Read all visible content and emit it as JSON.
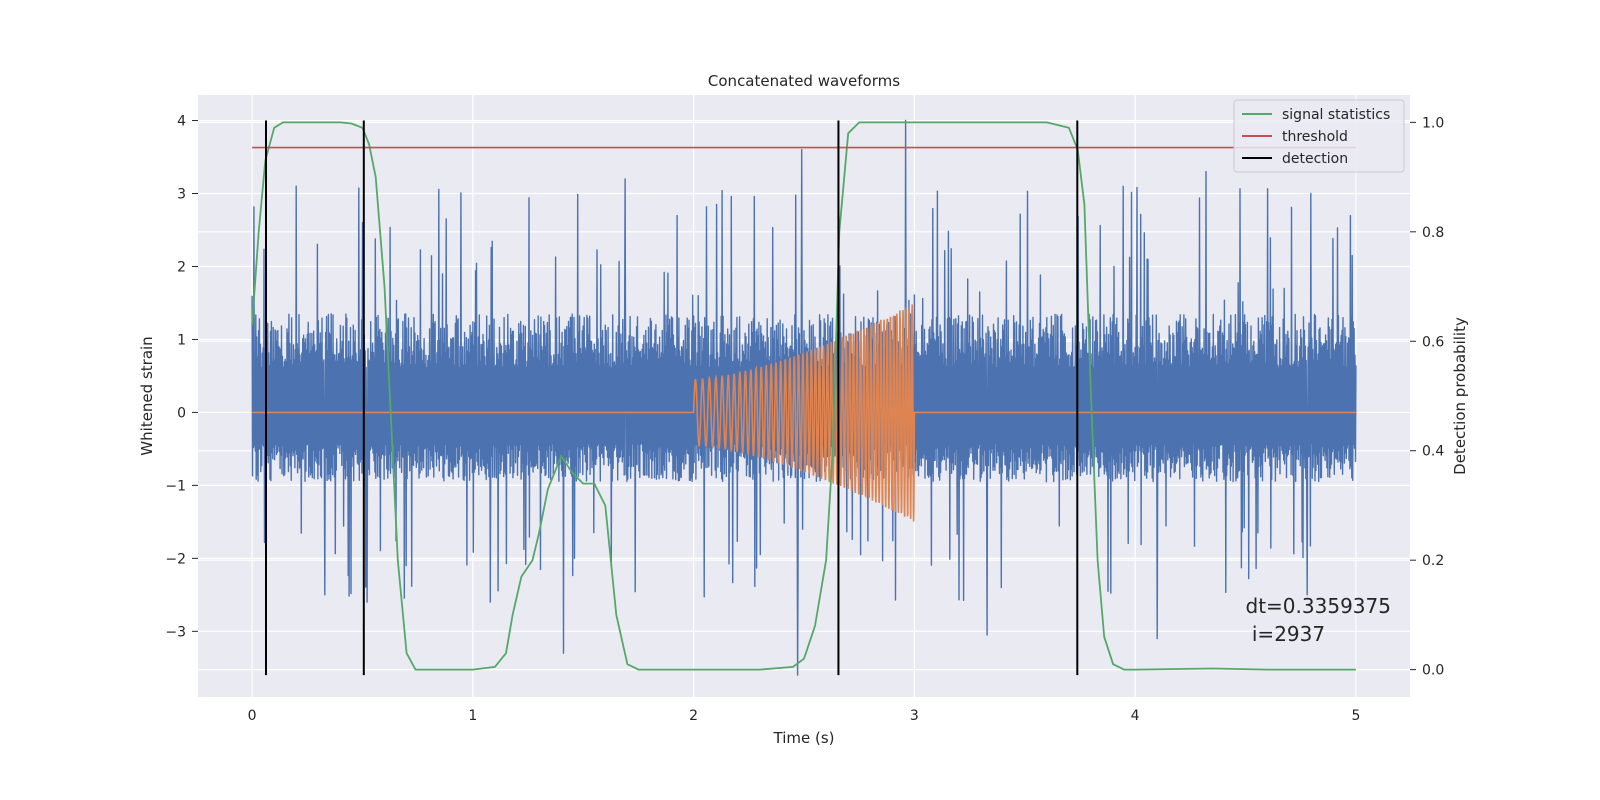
{
  "chart_data": {
    "type": "line",
    "title": "Concatenated waveforms",
    "xlabel": "Time (s)",
    "ylabel_left": "Whitened strain",
    "ylabel_right": "Detection probability",
    "xlim": [
      -0.245,
      5.245
    ],
    "ylim_left": [
      -3.9,
      4.35
    ],
    "ylim_right": [
      -0.05,
      1.05
    ],
    "x_ticks": [
      0,
      1,
      2,
      3,
      4,
      5
    ],
    "y_left_ticks": [
      -3,
      -2,
      -1,
      0,
      1,
      2,
      3,
      4
    ],
    "y_right_ticks": [
      0.0,
      0.2,
      0.4,
      0.6,
      0.8,
      1.0
    ],
    "grid": true,
    "legend_position": "top-right",
    "legend": [
      {
        "label": "signal statistics",
        "color": "#55a868"
      },
      {
        "label": "threshold",
        "color": "#c44e52"
      },
      {
        "label": "detection",
        "color": "#000000"
      }
    ],
    "series": [
      {
        "name": "whitened strain",
        "axis": "left",
        "color": "#4c72b0",
        "x_range": [
          0,
          5
        ],
        "typical_range": [
          -0.95,
          1.35
        ],
        "extreme_range": [
          -3.6,
          4.0
        ],
        "sample_peaks": [
          {
            "x": 0.0,
            "y": 1.6
          },
          {
            "x": 0.2,
            "y": 3.1
          },
          {
            "x": 0.33,
            "y": -2.5
          },
          {
            "x": 0.5,
            "y": 2.6
          },
          {
            "x": 0.52,
            "y": -2.6
          },
          {
            "x": 1.08,
            "y": -2.6
          },
          {
            "x": 1.41,
            "y": -3.3
          },
          {
            "x": 1.69,
            "y": 3.2
          },
          {
            "x": 2.47,
            "y": -3.6
          },
          {
            "x": 2.49,
            "y": 3.6
          },
          {
            "x": 2.96,
            "y": 4.0
          },
          {
            "x": 3.33,
            "y": -3.05
          },
          {
            "x": 4.1,
            "y": -3.1
          },
          {
            "x": 4.32,
            "y": 3.3
          },
          {
            "x": 4.78,
            "y": -2.5
          }
        ]
      },
      {
        "name": "injected chirp",
        "axis": "left",
        "color": "#dd8452",
        "baseline": 0,
        "chirp_start": 2.0,
        "chirp_end": 3.0,
        "amplitude_start": 0.45,
        "amplitude_end": 1.5,
        "approx_cycles": 52
      },
      {
        "name": "signal statistics",
        "axis": "right",
        "color": "#55a868",
        "x": [
          0.0,
          0.03,
          0.06,
          0.1,
          0.14,
          0.2,
          0.3,
          0.4,
          0.45,
          0.5,
          0.53,
          0.56,
          0.6,
          0.63,
          0.66,
          0.7,
          0.74,
          0.8,
          1.0,
          1.1,
          1.15,
          1.18,
          1.22,
          1.27,
          1.3,
          1.34,
          1.4,
          1.45,
          1.5,
          1.55,
          1.6,
          1.65,
          1.7,
          1.75,
          1.9,
          2.0,
          2.3,
          2.45,
          2.5,
          2.55,
          2.6,
          2.63,
          2.66,
          2.7,
          2.75,
          2.85,
          3.0,
          3.3,
          3.6,
          3.7,
          3.74,
          3.77,
          3.8,
          3.83,
          3.86,
          3.9,
          3.95,
          4.0,
          4.35,
          4.6,
          5.0
        ],
        "y": [
          0.63,
          0.8,
          0.93,
          0.99,
          1.0,
          1.0,
          1.0,
          1.0,
          0.998,
          0.99,
          0.96,
          0.9,
          0.7,
          0.45,
          0.2,
          0.03,
          0.0,
          0.0,
          0.0,
          0.005,
          0.03,
          0.1,
          0.17,
          0.2,
          0.25,
          0.33,
          0.39,
          0.36,
          0.34,
          0.34,
          0.3,
          0.1,
          0.01,
          0.0,
          0.0,
          0.0,
          0.0,
          0.005,
          0.02,
          0.08,
          0.2,
          0.4,
          0.8,
          0.98,
          1.0,
          1.0,
          1.0,
          1.0,
          1.0,
          0.99,
          0.95,
          0.85,
          0.5,
          0.2,
          0.06,
          0.01,
          0.0,
          0.0,
          0.002,
          0.0,
          0.0
        ]
      },
      {
        "name": "threshold",
        "axis": "left",
        "color": "#c44e52",
        "value": 3.63,
        "x_range": [
          0,
          5
        ]
      },
      {
        "name": "detection",
        "axis": "left",
        "color": "#000000",
        "x": [
          0.063,
          0.506,
          2.656,
          3.738
        ],
        "y_range": [
          -3.6,
          4.0
        ]
      }
    ],
    "annotations": [
      {
        "text": "dt=0.3359375",
        "x": 4.5,
        "y": -2.75
      },
      {
        "text": " i=2937",
        "x": 4.5,
        "y": -3.13
      }
    ]
  }
}
